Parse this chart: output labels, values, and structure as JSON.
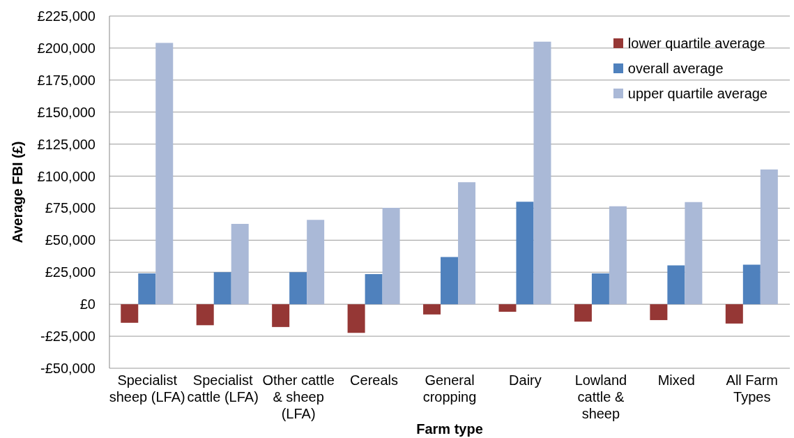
{
  "chart_data": {
    "type": "bar",
    "ylabel": "Average FBI (£)",
    "xlabel": "Farm type",
    "categories": [
      "Specialist sheep (LFA)",
      "Specialist cattle (LFA)",
      "Other cattle & sheep (LFA)",
      "Cereals",
      "General cropping",
      "Dairy",
      "Lowland cattle & sheep",
      "Mixed",
      "All Farm Types"
    ],
    "series": [
      {
        "name": "lower quartile average",
        "color": "#953735",
        "values": [
          -14500,
          -16400,
          -17800,
          -22400,
          -8000,
          -5900,
          -13600,
          -12400,
          -15100
        ]
      },
      {
        "name": "overall average",
        "color": "#4f81bd",
        "values": [
          24000,
          25000,
          25000,
          23500,
          36800,
          80000,
          24000,
          30300,
          30900
        ]
      },
      {
        "name": "upper quartile average",
        "color": "#aab9d7",
        "values": [
          204000,
          62700,
          65900,
          75300,
          95300,
          205000,
          76500,
          79800,
          105200
        ]
      }
    ],
    "ylim": [
      -50000,
      225000
    ],
    "yticks": [
      {
        "value": -50000,
        "label": "-£50,000"
      },
      {
        "value": -25000,
        "label": "-£25,000"
      },
      {
        "value": 0,
        "label": "£0"
      },
      {
        "value": 25000,
        "label": "£25,000"
      },
      {
        "value": 50000,
        "label": "£50,000"
      },
      {
        "value": 75000,
        "label": "£75,000"
      },
      {
        "value": 100000,
        "label": "£100,000"
      },
      {
        "value": 125000,
        "label": "£125,000"
      },
      {
        "value": 150000,
        "label": "£150,000"
      },
      {
        "value": 175000,
        "label": "£175,000"
      },
      {
        "value": 200000,
        "label": "£200,000"
      },
      {
        "value": 225000,
        "label": "£225,000"
      }
    ],
    "grid": "y",
    "legend": "top right"
  }
}
